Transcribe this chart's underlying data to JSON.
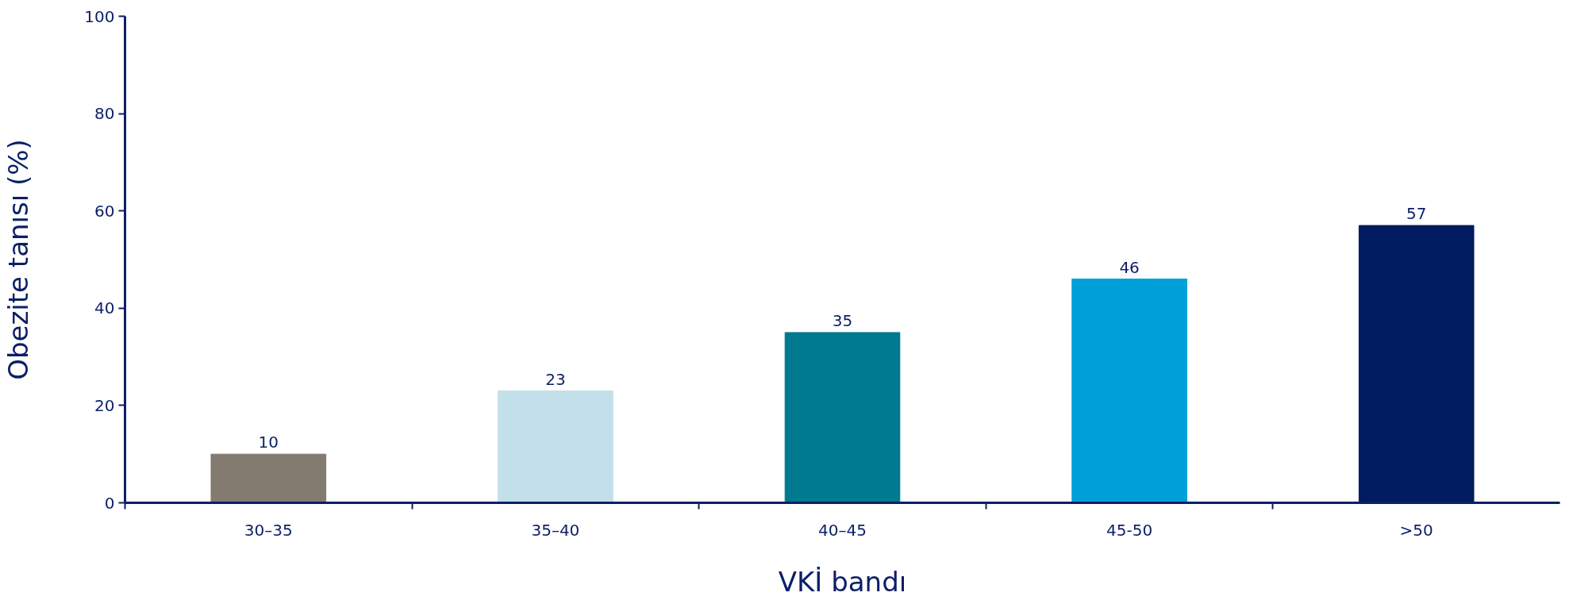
{
  "chart_data": {
    "type": "bar",
    "xlabel": "VKİ bandı",
    "ylabel": "Obezite tanısı (%)",
    "categories": [
      "30–35",
      "35–40",
      "40–45",
      "45-50",
      ">50"
    ],
    "values": [
      10,
      23,
      35,
      46,
      57
    ],
    "colors": [
      "#837a70",
      "#c3dfea",
      "#007a8e",
      "#00a0d8",
      "#001b60"
    ],
    "ylim": [
      0,
      100
    ],
    "yticks": [
      0,
      20,
      40,
      60,
      80,
      100
    ],
    "data_labels": true,
    "grid": false
  }
}
